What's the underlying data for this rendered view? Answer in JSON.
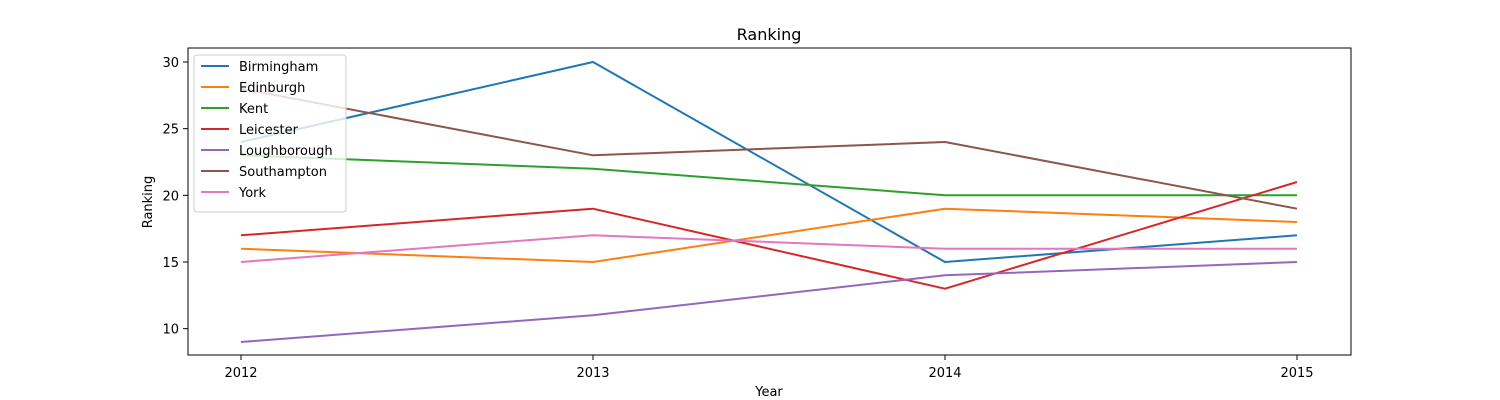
{
  "chart_data": {
    "type": "line",
    "title": "Ranking",
    "xlabel": "Year",
    "ylabel": "Ranking",
    "x": [
      "2012",
      "2013",
      "2014",
      "2015"
    ],
    "yticks": [
      10,
      15,
      20,
      25,
      30
    ],
    "ylim": [
      8,
      31
    ],
    "grid": false,
    "legend_position": "top-left",
    "series": [
      {
        "name": "Birmingham",
        "color": "#1f77b4",
        "values": [
          24,
          30,
          15,
          17
        ]
      },
      {
        "name": "Edinburgh",
        "color": "#ff7f0e",
        "values": [
          16,
          15,
          19,
          18
        ]
      },
      {
        "name": "Kent",
        "color": "#2ca02c",
        "values": [
          23,
          22,
          20,
          20
        ]
      },
      {
        "name": "Leicester",
        "color": "#d62728",
        "values": [
          17,
          19,
          13,
          21
        ]
      },
      {
        "name": "Loughborough",
        "color": "#9467bd",
        "values": [
          9,
          11,
          14,
          15
        ]
      },
      {
        "name": "Southampton",
        "color": "#8c564b",
        "values": [
          28,
          23,
          24,
          19
        ]
      },
      {
        "name": "York",
        "color": "#e377c2",
        "values": [
          15,
          17,
          16,
          16
        ]
      }
    ]
  }
}
